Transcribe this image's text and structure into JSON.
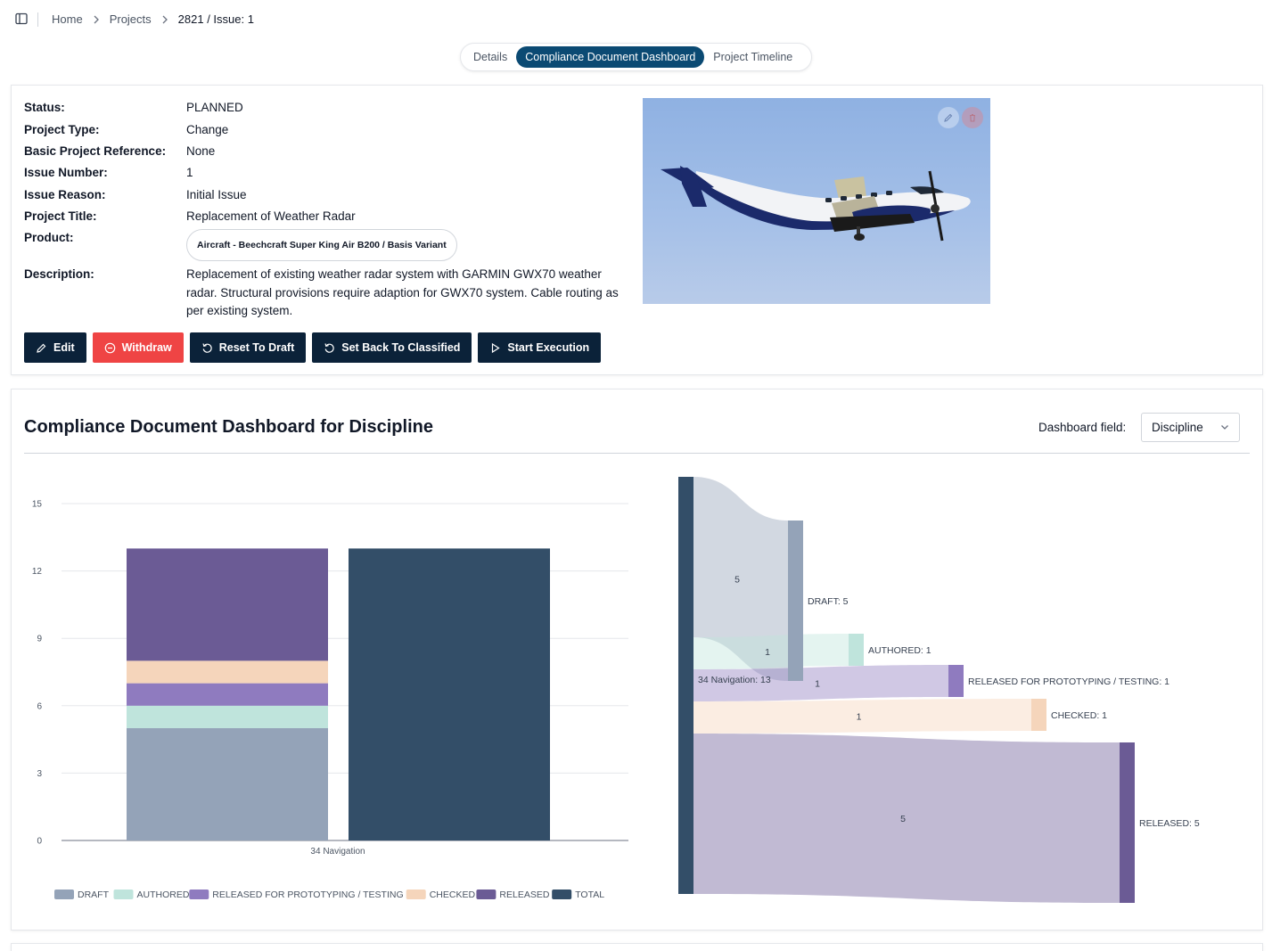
{
  "breadcrumb": {
    "home": "Home",
    "projects": "Projects",
    "current": "2821 / Issue: 1"
  },
  "tabs": [
    {
      "label": "Details",
      "active": false
    },
    {
      "label": "Compliance Document Dashboard",
      "active": true
    },
    {
      "label": "Project Timeline",
      "active": false
    }
  ],
  "details": {
    "fields": [
      {
        "label": "Status:",
        "value": "PLANNED"
      },
      {
        "label": "Project Type:",
        "value": "Change"
      },
      {
        "label": "Basic Project Reference:",
        "value": "None"
      },
      {
        "label": "Issue Number:",
        "value": "1"
      },
      {
        "label": "Issue Reason:",
        "value": "Initial Issue"
      },
      {
        "label": "Project Title:",
        "value": "Replacement of Weather Radar"
      }
    ],
    "product_label": "Product:",
    "product_value": "Aircraft - Beechcraft Super King Air B200 / Basis Variant",
    "description_label": "Description:",
    "description": "Replacement of existing weather radar system with GARMIN GWX70 weather radar. Structural provisions require adaption for GWX70 system. Cable routing as per existing system."
  },
  "actions": {
    "edit": "Edit",
    "withdraw": "Withdraw",
    "reset_to_draft": "Reset To Draft",
    "set_back_to_classified": "Set Back To Classified",
    "start_execution": "Start Execution"
  },
  "dashboard": {
    "title": "Compliance Document Dashboard for Discipline",
    "field_label": "Dashboard field:",
    "field_value": "Discipline"
  },
  "chart_data": [
    {
      "type": "bar",
      "stacked": true,
      "categories": [
        "34 Navigation"
      ],
      "series": [
        {
          "name": "DRAFT",
          "values": [
            5
          ],
          "color": "#94a3b8"
        },
        {
          "name": "AUTHORED",
          "values": [
            1
          ],
          "color": "#bfe4dc"
        },
        {
          "name": "RELEASED FOR PROTOTYPING / TESTING",
          "values": [
            1
          ],
          "color": "#8f7bbf"
        },
        {
          "name": "CHECKED",
          "values": [
            1
          ],
          "color": "#f5d5bb"
        },
        {
          "name": "RELEASED",
          "values": [
            5
          ],
          "color": "#6b5b95"
        },
        {
          "name": "TOTAL",
          "values": [
            13
          ],
          "color": "#334e68"
        }
      ],
      "y_ticks": [
        0,
        3,
        6,
        9,
        12,
        15
      ],
      "ylim": [
        0,
        15
      ],
      "legend": "bottom",
      "grid": true
    },
    {
      "type": "sankey",
      "source": {
        "name": "34 Navigation",
        "value": 13,
        "label": "34 Navigation: 13",
        "color": "#334e68"
      },
      "links": [
        {
          "target": "DRAFT",
          "value": 5,
          "label": "5",
          "node_label": "DRAFT: 5",
          "color": "#94a3b8"
        },
        {
          "target": "AUTHORED",
          "value": 1,
          "label": "1",
          "node_label": "AUTHORED: 1",
          "color": "#bfe4dc"
        },
        {
          "target": "RELEASED FOR PROTOTYPING / TESTING",
          "value": 1,
          "label": "1",
          "node_label": "RELEASED FOR PROTOTYPING / TESTING: 1",
          "color": "#8f7bbf"
        },
        {
          "target": "CHECKED",
          "value": 1,
          "label": "1",
          "node_label": "CHECKED: 1",
          "color": "#f5d5bb"
        },
        {
          "target": "RELEASED",
          "value": 5,
          "label": "5",
          "node_label": "RELEASED: 5",
          "color": "#6b5b95"
        }
      ]
    }
  ]
}
